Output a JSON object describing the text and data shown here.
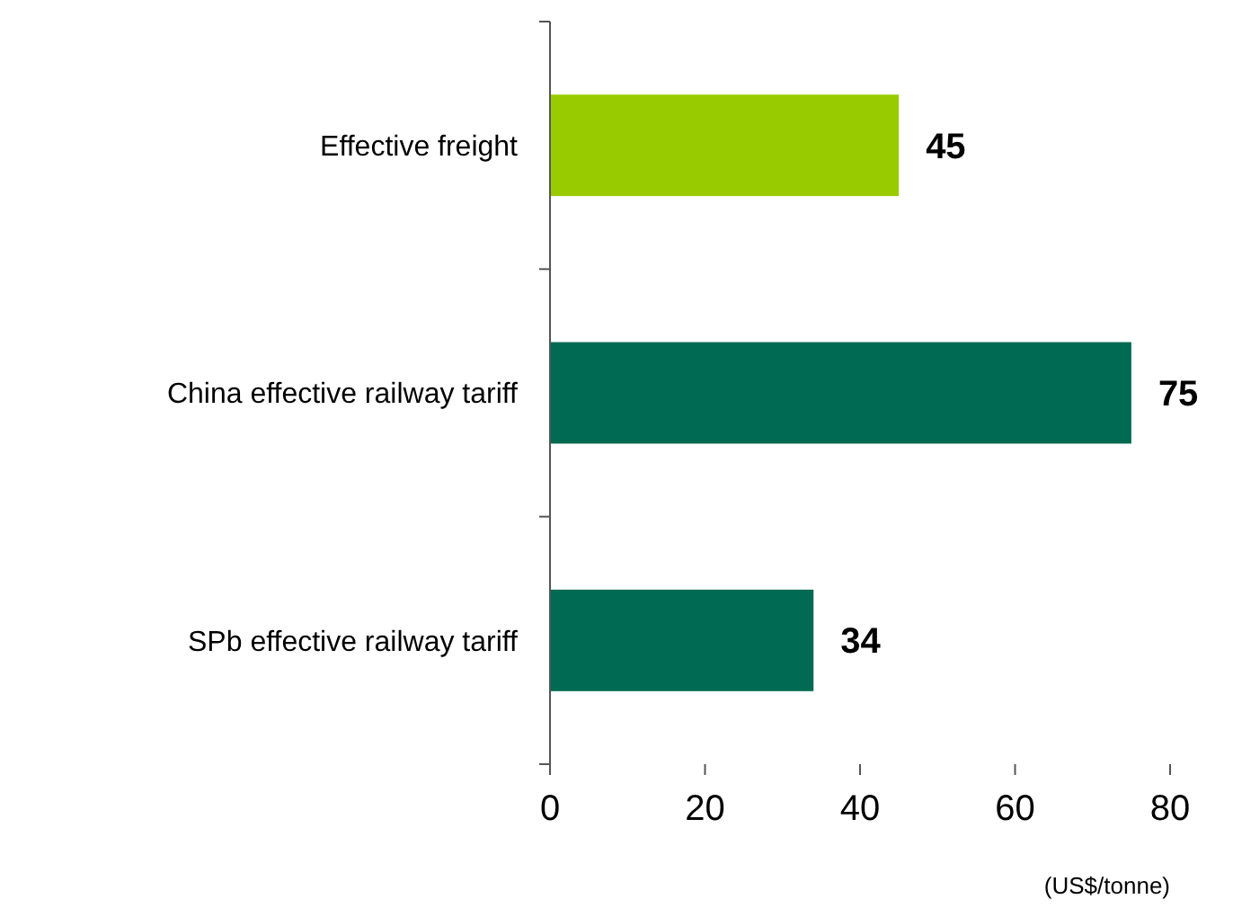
{
  "chart_data": {
    "type": "bar",
    "orientation": "horizontal",
    "categories": [
      "Effective freight",
      "China effective railway tariff",
      "SPb effective railway tariff"
    ],
    "values": [
      45,
      75,
      34
    ],
    "colors": [
      "#99cc00",
      "#006a52",
      "#006a52"
    ],
    "xlim": [
      0,
      80
    ],
    "xticks": [
      0,
      20,
      40,
      60,
      80
    ],
    "xlabel": "(US$/tonne)",
    "data_labels": true,
    "grid": false
  }
}
